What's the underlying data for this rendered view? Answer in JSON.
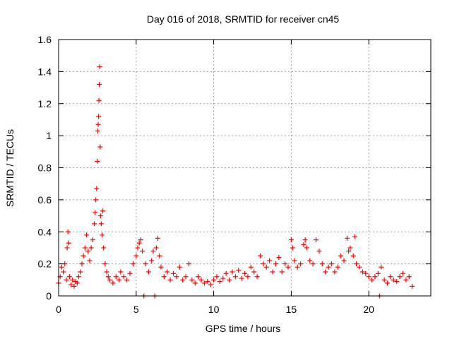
{
  "chart_data": {
    "type": "scatter",
    "title": "Day 016 of 2018, SRMTID for receiver cn45",
    "xlabel": "GPS time / hours",
    "ylabel": "SRMTID / TECUs",
    "xlim": [
      0,
      24
    ],
    "ylim": [
      0,
      1.6
    ],
    "x_ticks": [
      0,
      5,
      10,
      15,
      20
    ],
    "x_tick_labels": [
      "0",
      "5",
      "10",
      "15",
      "20"
    ],
    "y_ticks": [
      0,
      0.2,
      0.4,
      0.6,
      0.8,
      1.0,
      1.2,
      1.4,
      1.6
    ],
    "y_tick_labels": [
      "0",
      "0.2",
      "0.4",
      "0.6",
      "0.8",
      "1",
      "1.2",
      "1.4",
      "1.6"
    ],
    "grid": true,
    "marker": "+",
    "series": [
      {
        "name": "SRMTID",
        "color": "#ff0000",
        "x": [
          0.0,
          0.1,
          0.2,
          0.3,
          0.4,
          0.5,
          0.55,
          0.6,
          0.65,
          0.7,
          0.8,
          0.9,
          1.0,
          1.1,
          1.2,
          1.3,
          1.4,
          1.5,
          1.6,
          1.7,
          1.8,
          1.9,
          2.0,
          2.1,
          2.2,
          2.3,
          2.35,
          2.4,
          2.45,
          2.5,
          2.52,
          2.55,
          2.58,
          2.6,
          2.62,
          2.65,
          2.68,
          2.7,
          2.75,
          2.8,
          2.85,
          2.9,
          3.0,
          3.1,
          3.2,
          3.3,
          3.5,
          3.7,
          3.9,
          4.0,
          4.2,
          4.4,
          4.6,
          4.8,
          5.0,
          5.1,
          5.2,
          5.3,
          5.4,
          5.5,
          5.6,
          5.8,
          6.0,
          6.1,
          6.2,
          6.3,
          6.4,
          6.5,
          6.6,
          6.8,
          7.0,
          7.2,
          7.4,
          7.6,
          7.8,
          8.0,
          8.2,
          8.4,
          8.6,
          8.8,
          9.0,
          9.2,
          9.4,
          9.6,
          9.8,
          10.0,
          10.2,
          10.4,
          10.6,
          10.8,
          11.0,
          11.2,
          11.4,
          11.6,
          11.8,
          12.0,
          12.2,
          12.4,
          12.6,
          12.8,
          13.0,
          13.2,
          13.4,
          13.6,
          13.8,
          14.0,
          14.2,
          14.4,
          14.6,
          14.8,
          15.0,
          15.1,
          15.2,
          15.4,
          15.6,
          15.8,
          15.9,
          16.0,
          16.2,
          16.4,
          16.6,
          16.8,
          17.0,
          17.2,
          17.4,
          17.6,
          17.8,
          18.0,
          18.2,
          18.4,
          18.6,
          18.7,
          18.8,
          19.0,
          19.1,
          19.2,
          19.4,
          19.6,
          19.8,
          20.0,
          20.2,
          20.4,
          20.6,
          20.7,
          20.8,
          21.0,
          21.2,
          21.4,
          21.6,
          21.8,
          22.0,
          22.2,
          22.4,
          22.6,
          22.8
        ],
        "y": [
          0.08,
          0.12,
          0.18,
          0.15,
          0.2,
          0.1,
          0.3,
          0.4,
          0.33,
          0.12,
          0.07,
          0.1,
          0.06,
          0.09,
          0.08,
          0.12,
          0.15,
          0.2,
          0.25,
          0.3,
          0.38,
          0.28,
          0.22,
          0.3,
          0.35,
          0.45,
          0.52,
          0.6,
          0.67,
          0.84,
          1.03,
          1.07,
          1.12,
          1.22,
          1.32,
          1.43,
          0.93,
          0.5,
          0.45,
          0.38,
          0.53,
          0.3,
          0.2,
          0.15,
          0.12,
          0.1,
          0.08,
          0.12,
          0.1,
          0.15,
          0.12,
          0.1,
          0.14,
          0.2,
          0.25,
          0.3,
          0.33,
          0.35,
          0.28,
          0.0,
          0.2,
          0.15,
          0.22,
          0.28,
          0.0,
          0.3,
          0.36,
          0.25,
          0.18,
          0.12,
          0.15,
          0.1,
          0.14,
          0.12,
          0.18,
          0.1,
          0.12,
          0.2,
          0.1,
          0.08,
          0.12,
          0.1,
          0.08,
          0.09,
          0.07,
          0.1,
          0.12,
          0.09,
          0.11,
          0.14,
          0.1,
          0.15,
          0.12,
          0.16,
          0.11,
          0.14,
          0.12,
          0.18,
          0.15,
          0.12,
          0.25,
          0.2,
          0.18,
          0.22,
          0.15,
          0.2,
          0.24,
          0.15,
          0.2,
          0.18,
          0.35,
          0.3,
          0.22,
          0.18,
          0.2,
          0.32,
          0.35,
          0.3,
          0.22,
          0.2,
          0.35,
          0.28,
          0.2,
          0.15,
          0.18,
          0.2,
          0.15,
          0.18,
          0.25,
          0.22,
          0.36,
          0.28,
          0.3,
          0.25,
          0.37,
          0.2,
          0.18,
          0.15,
          0.14,
          0.12,
          0.1,
          0.12,
          0.14,
          0.0,
          0.18,
          0.1,
          0.08,
          0.12,
          0.1,
          0.09,
          0.12,
          0.14,
          0.1,
          0.12,
          0.06
        ]
      }
    ]
  }
}
